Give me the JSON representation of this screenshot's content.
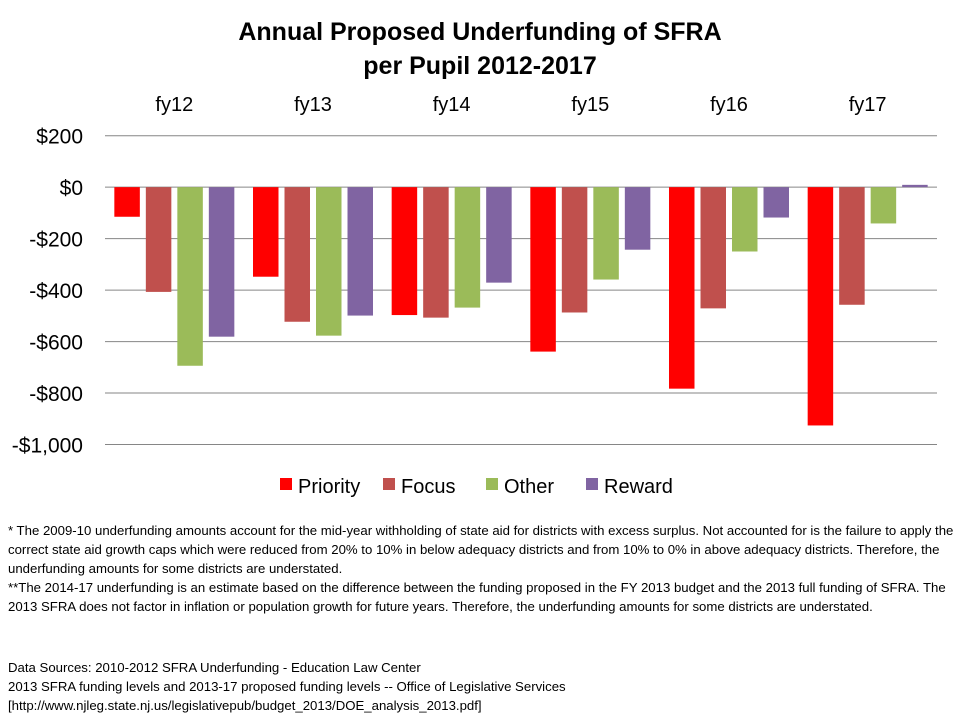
{
  "chart_data": {
    "type": "bar",
    "title": [
      "Annual Proposed Underfunding of SFRA",
      "per Pupil 2012-2017"
    ],
    "xlabel": "",
    "ylabel": "",
    "categories": [
      "fy12",
      "fy13",
      "fy14",
      "fy15",
      "fy16",
      "fy17"
    ],
    "category_labels_position": "top",
    "ylim": [
      -1000,
      200
    ],
    "yticks": [
      200,
      0,
      -200,
      -400,
      -600,
      -800,
      -1000
    ],
    "ytick_labels": [
      "$200",
      "$0",
      "-$200",
      "-$400",
      "-$600",
      "-$800",
      "-$1,000"
    ],
    "grid": true,
    "legend_position": "bottom",
    "series": [
      {
        "name": "Priority",
        "color": "#ff0000",
        "values": [
          -115,
          -348,
          -497,
          -639,
          -783,
          -926
        ]
      },
      {
        "name": "Focus",
        "color": "#c0504d",
        "values": [
          -407,
          -523,
          -507,
          -487,
          -471,
          -457
        ]
      },
      {
        "name": "Other",
        "color": "#9bbb59",
        "values": [
          -694,
          -577,
          -468,
          -359,
          -250,
          -141
        ]
      },
      {
        "name": "Reward",
        "color": "#8064a2",
        "values": [
          -581,
          -499,
          -371,
          -243,
          -118,
          9
        ]
      }
    ]
  },
  "notes": [
    "* The 2009-10 underfunding amounts account for the mid-year withholding of state aid for districts with excess surplus. Not accounted for is the failure to apply the correct state aid growth caps which were reduced from 20% to 10% in below adequacy districts and from 10% to 0% in above adequacy districts. Therefore, the underfunding  amounts for some districts are understated.",
    "**The 2014-17 underfunding  is an estimate based on the difference between the funding proposed in the FY 2013 budget and the 2013 full funding of SFRA. The 2013 SFRA does not factor in inflation or population growth for future years.  Therefore, the underfunding amounts for some districts are understated."
  ],
  "sources": [
    "Data Sources:  2010-2012 SFRA Underfunding  - Education Law Center",
    "2013 SFRA funding levels and 2013-17 proposed  funding levels  -- Office of Legislative Services",
    "[http://www.njleg.state.nj.us/legislativepub/budget_2013/DOE_analysis_2013.pdf]"
  ]
}
